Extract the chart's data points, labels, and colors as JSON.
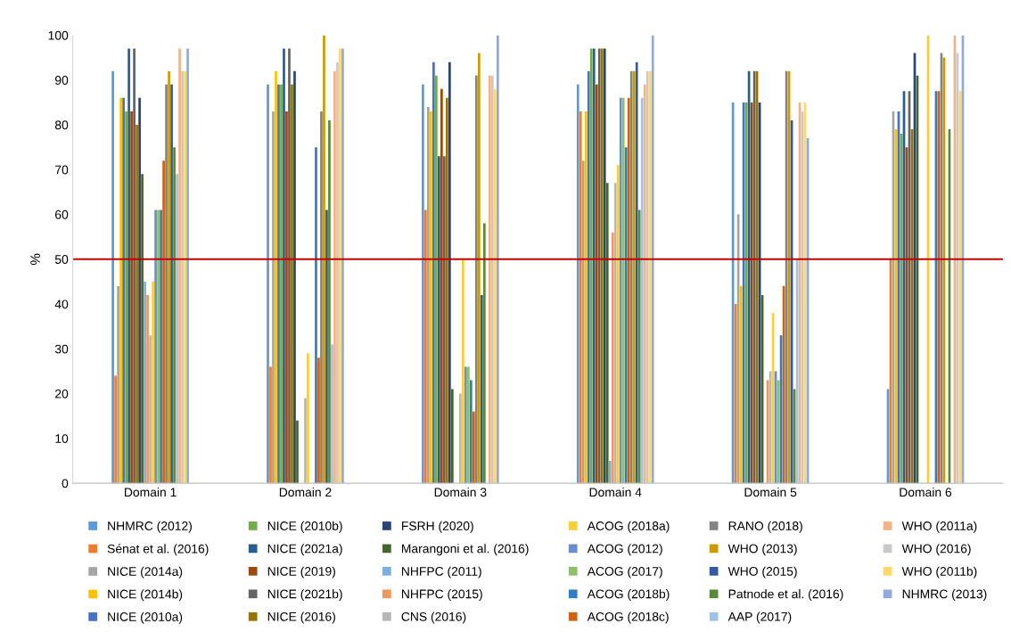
{
  "chart_data": {
    "type": "bar",
    "ylabel": "%",
    "categories": [
      "Domain 1",
      "Domain 2",
      "Domain 3",
      "Domain 4",
      "Domain 5",
      "Domain 6"
    ],
    "ylim": [
      0,
      100
    ],
    "yticks": [
      0,
      10,
      20,
      30,
      40,
      50,
      60,
      70,
      80,
      90,
      100
    ],
    "grid": false,
    "legend": "bottom",
    "ref_lines": [
      {
        "axis": "y",
        "value": 50,
        "color": "#c00000"
      }
    ],
    "series": [
      {
        "name": "NHMRC (2012)",
        "color": "#5b9bd5",
        "values": [
          92,
          89,
          89,
          89,
          85,
          21
        ]
      },
      {
        "name": "Sénat et al. (2016)",
        "color": "#ed7d31",
        "values": [
          24,
          26,
          61,
          83,
          40,
          50
        ]
      },
      {
        "name": "NICE (2014a)",
        "color": "#a5a5a5",
        "values": [
          44,
          83,
          84,
          72,
          60,
          83
        ]
      },
      {
        "name": "NICE (2014b)",
        "color": "#ffc000",
        "values": [
          86,
          92,
          83,
          83,
          44,
          79
        ]
      },
      {
        "name": "NICE (2010a)",
        "color": "#4472c4",
        "values": [
          86,
          89,
          94,
          92,
          85,
          83
        ]
      },
      {
        "name": "NICE (2010b)",
        "color": "#70ad47",
        "values": [
          83,
          89,
          91,
          97,
          85,
          78
        ]
      },
      {
        "name": "NICE (2021a)",
        "color": "#255e91",
        "values": [
          97,
          97,
          73,
          97,
          92,
          87.5
        ]
      },
      {
        "name": "NICE (2019)",
        "color": "#9e480e",
        "values": [
          83,
          83,
          88,
          89,
          85,
          75
        ]
      },
      {
        "name": "NICE (2021b)",
        "color": "#636363",
        "values": [
          97,
          97,
          73,
          97,
          92,
          87.5
        ]
      },
      {
        "name": "NICE (2016)",
        "color": "#997300",
        "values": [
          80,
          89,
          86,
          97,
          92,
          79
        ]
      },
      {
        "name": "FSRH (2020)",
        "color": "#264478",
        "values": [
          86,
          92,
          94,
          97,
          85,
          96
        ]
      },
      {
        "name": "Marangoni et al. (2016)",
        "color": "#43682b",
        "values": [
          69,
          14,
          21,
          67,
          42,
          91
        ]
      },
      {
        "name": "NHFPC (2011)",
        "color": "#7cafdd",
        "values": [
          45,
          null,
          null,
          5,
          null,
          null
        ]
      },
      {
        "name": "NHFPC (2015)",
        "color": "#f1975a",
        "values": [
          42,
          null,
          null,
          56,
          23,
          null
        ]
      },
      {
        "name": "CNS (2016)",
        "color": "#b7b7b7",
        "values": [
          33,
          19,
          20,
          67,
          25,
          null
        ]
      },
      {
        "name": "ACOG (2018a)",
        "color": "#ffcd33",
        "values": [
          45,
          29,
          50,
          71,
          38,
          100
        ]
      },
      {
        "name": "ACOG (2012)",
        "color": "#698ed0",
        "values": [
          61,
          null,
          26,
          86,
          25,
          null
        ]
      },
      {
        "name": "ACOG (2017)",
        "color": "#8cc168",
        "values": [
          61,
          null,
          26,
          86,
          23,
          null
        ]
      },
      {
        "name": "ACOG (2018b)",
        "color": "#327dc2",
        "values": [
          61,
          75,
          23,
          75,
          33,
          87.5
        ]
      },
      {
        "name": "ACOG (2018c)",
        "color": "#d26012",
        "values": [
          72,
          28,
          16,
          86,
          44,
          87.5
        ]
      },
      {
        "name": "RANO (2018)",
        "color": "#848484",
        "values": [
          89,
          83,
          91,
          92,
          92,
          96
        ]
      },
      {
        "name": "WHO (2013)",
        "color": "#cc9a00",
        "values": [
          92,
          100,
          96,
          92,
          92,
          95
        ]
      },
      {
        "name": "WHO (2015)",
        "color": "#335aa1",
        "values": [
          89,
          61,
          42,
          94,
          81,
          null
        ]
      },
      {
        "name": "Patnode et al. (2016)",
        "color": "#5a8a39",
        "values": [
          75,
          81,
          58,
          61,
          21,
          79
        ]
      },
      {
        "name": "AAP (2017)",
        "color": "#9dc3e6",
        "values": [
          69,
          31,
          null,
          86,
          50,
          null
        ]
      },
      {
        "name": "WHO (2011a)",
        "color": "#f4b183",
        "values": [
          97,
          92,
          91,
          89,
          85,
          100
        ]
      },
      {
        "name": "WHO (2016)",
        "color": "#c9c9c9",
        "values": [
          92,
          94,
          91,
          92,
          83,
          96
        ]
      },
      {
        "name": "WHO (2011b)",
        "color": "#ffd966",
        "values": [
          92,
          97,
          88,
          92,
          85,
          87.5
        ]
      },
      {
        "name": "NHMRC (2013)",
        "color": "#8faadc",
        "values": [
          97,
          97,
          100,
          100,
          77,
          100
        ]
      }
    ]
  }
}
